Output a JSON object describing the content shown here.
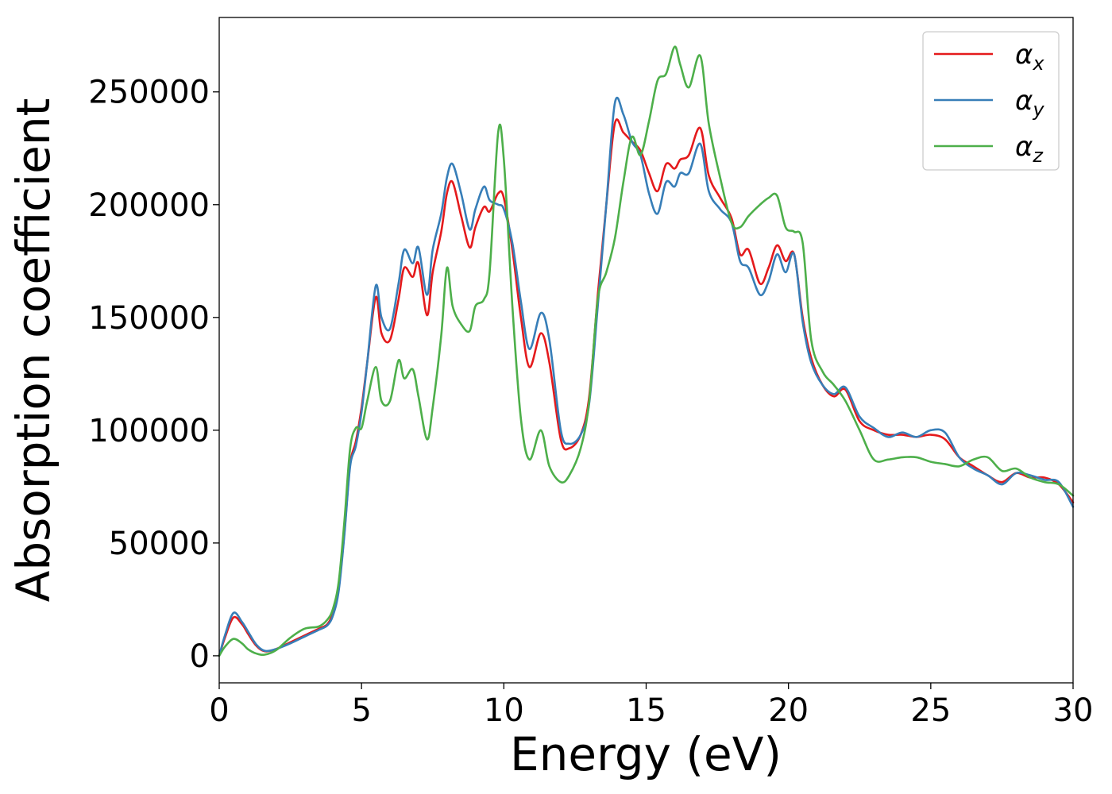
{
  "chart_data": {
    "type": "line",
    "title": "",
    "xlabel": "Energy (eV)",
    "ylabel": "Absorption coefficient",
    "xlim": [
      0,
      30
    ],
    "ylim": [
      -12000,
      283000
    ],
    "xticks": [
      0,
      5,
      10,
      15,
      20,
      25,
      30
    ],
    "yticks": [
      0,
      50000,
      100000,
      150000,
      200000,
      250000
    ],
    "grid": false,
    "legend": "top-right",
    "series": [
      {
        "name": "α",
        "sub": "x",
        "color": "#e41a1c",
        "x": [
          0,
          0.2,
          0.5,
          0.8,
          1.0,
          1.3,
          1.6,
          2.0,
          2.5,
          3.0,
          3.5,
          3.8,
          4.0,
          4.2,
          4.4,
          4.6,
          4.8,
          5.0,
          5.2,
          5.5,
          5.7,
          6.0,
          6.3,
          6.5,
          6.8,
          7.0,
          7.3,
          7.5,
          7.8,
          8.0,
          8.2,
          8.5,
          8.8,
          9.0,
          9.3,
          9.5,
          9.8,
          10.0,
          10.3,
          10.6,
          10.9,
          11.3,
          11.6,
          12.0,
          12.3,
          12.7,
          13.0,
          13.3,
          13.6,
          13.9,
          14.2,
          14.5,
          14.8,
          15.1,
          15.4,
          15.7,
          16.0,
          16.2,
          16.5,
          16.9,
          17.2,
          17.6,
          18.0,
          18.3,
          18.6,
          19.0,
          19.3,
          19.6,
          19.9,
          20.2,
          20.5,
          20.8,
          21.2,
          21.6,
          22.0,
          22.5,
          23.0,
          23.5,
          24.0,
          24.5,
          25.0,
          25.5,
          26.0,
          26.5,
          27.0,
          27.5,
          28.0,
          28.5,
          29.0,
          29.5,
          30.0
        ],
        "y": [
          0,
          8000,
          17000,
          14000,
          10000,
          4500,
          2000,
          3000,
          6000,
          9000,
          12000,
          14000,
          19000,
          30000,
          55000,
          85000,
          95000,
          110000,
          130000,
          159000,
          143000,
          140000,
          158000,
          172000,
          168000,
          174000,
          151000,
          170000,
          188000,
          205000,
          210000,
          195000,
          181000,
          190000,
          199000,
          197000,
          205000,
          203000,
          180000,
          150000,
          128000,
          143000,
          130000,
          96000,
          92000,
          98000,
          115000,
          160000,
          200000,
          236000,
          232000,
          228000,
          224000,
          214000,
          206000,
          218000,
          216000,
          220000,
          222000,
          234000,
          213000,
          203000,
          194000,
          178000,
          180000,
          165000,
          172000,
          182000,
          175000,
          178000,
          150000,
          132000,
          120000,
          115000,
          118000,
          104000,
          100000,
          98000,
          98000,
          97000,
          98000,
          96000,
          88000,
          84000,
          80000,
          77000,
          81000,
          79000,
          79000,
          76000,
          68000
        ]
      },
      {
        "name": "α",
        "sub": "y",
        "color": "#377eb8",
        "x": [
          0,
          0.2,
          0.5,
          0.8,
          1.0,
          1.3,
          1.6,
          2.0,
          2.5,
          3.0,
          3.5,
          3.8,
          4.0,
          4.2,
          4.4,
          4.6,
          4.8,
          5.0,
          5.2,
          5.5,
          5.7,
          6.0,
          6.3,
          6.5,
          6.8,
          7.0,
          7.3,
          7.5,
          7.8,
          8.0,
          8.2,
          8.5,
          8.8,
          9.0,
          9.3,
          9.5,
          9.8,
          10.0,
          10.3,
          10.6,
          10.9,
          11.3,
          11.6,
          12.0,
          12.3,
          12.7,
          13.0,
          13.3,
          13.6,
          13.9,
          14.2,
          14.5,
          14.8,
          15.1,
          15.4,
          15.7,
          16.0,
          16.2,
          16.5,
          16.9,
          17.2,
          17.6,
          18.0,
          18.3,
          18.6,
          19.0,
          19.3,
          19.6,
          19.9,
          20.2,
          20.5,
          20.8,
          21.2,
          21.6,
          22.0,
          22.5,
          23.0,
          23.5,
          24.0,
          24.5,
          25.0,
          25.5,
          26.0,
          26.5,
          27.0,
          27.5,
          28.0,
          28.5,
          29.0,
          29.5,
          30.0
        ],
        "y": [
          0,
          9000,
          19000,
          15000,
          11000,
          5000,
          2200,
          3000,
          5500,
          8500,
          11500,
          13500,
          18000,
          29000,
          54000,
          84000,
          93000,
          108000,
          130000,
          164000,
          150000,
          145000,
          165000,
          180000,
          174000,
          181000,
          160000,
          180000,
          196000,
          212000,
          218000,
          205000,
          189000,
          198000,
          208000,
          202000,
          200000,
          198000,
          183000,
          157000,
          136000,
          152000,
          140000,
          100000,
          94000,
          98000,
          112000,
          155000,
          200000,
          245000,
          240000,
          228000,
          222000,
          205000,
          196000,
          210000,
          208000,
          214000,
          214000,
          227000,
          206000,
          198000,
          192000,
          175000,
          172000,
          160000,
          166000,
          178000,
          170000,
          178000,
          148000,
          130000,
          120000,
          116000,
          119000,
          106000,
          101000,
          97000,
          99000,
          97000,
          100000,
          99000,
          88000,
          83000,
          80000,
          76000,
          81000,
          80000,
          78000,
          77000,
          66000
        ]
      },
      {
        "name": "α",
        "sub": "z",
        "color": "#4daf4a",
        "x": [
          0,
          0.2,
          0.5,
          0.8,
          1.0,
          1.3,
          1.6,
          2.0,
          2.5,
          3.0,
          3.5,
          3.8,
          4.0,
          4.2,
          4.4,
          4.6,
          4.8,
          5.0,
          5.2,
          5.5,
          5.7,
          6.0,
          6.3,
          6.5,
          6.8,
          7.0,
          7.3,
          7.5,
          7.8,
          8.0,
          8.2,
          8.5,
          8.8,
          9.0,
          9.3,
          9.5,
          9.8,
          10.0,
          10.3,
          10.6,
          10.9,
          11.3,
          11.6,
          12.0,
          12.3,
          12.7,
          13.0,
          13.3,
          13.6,
          13.9,
          14.2,
          14.5,
          14.8,
          15.1,
          15.4,
          15.7,
          16.0,
          16.2,
          16.5,
          16.9,
          17.2,
          17.6,
          18.0,
          18.3,
          18.6,
          19.0,
          19.3,
          19.6,
          19.9,
          20.2,
          20.5,
          20.8,
          21.2,
          21.6,
          22.0,
          22.5,
          23.0,
          23.5,
          24.0,
          24.5,
          25.0,
          25.5,
          26.0,
          26.5,
          27.0,
          27.5,
          28.0,
          28.5,
          29.0,
          29.5,
          30.0
        ],
        "y": [
          0,
          4000,
          7500,
          5500,
          3000,
          1000,
          500,
          2500,
          8000,
          12000,
          13000,
          16000,
          21000,
          33000,
          60000,
          92000,
          101000,
          101000,
          113000,
          128000,
          113000,
          113000,
          131000,
          123000,
          127000,
          115000,
          96000,
          110000,
          142000,
          172000,
          155000,
          147000,
          144000,
          155000,
          158000,
          170000,
          232000,
          220000,
          155000,
          105000,
          87000,
          100000,
          84000,
          77000,
          80000,
          92000,
          113000,
          158000,
          170000,
          185000,
          210000,
          230000,
          222000,
          237000,
          255000,
          258000,
          270000,
          262000,
          252000,
          266000,
          236000,
          212000,
          192000,
          190000,
          195000,
          200000,
          203000,
          204000,
          190000,
          188000,
          183000,
          140000,
          126000,
          120000,
          113000,
          100000,
          87000,
          87000,
          88000,
          88000,
          86000,
          85000,
          84000,
          87000,
          88000,
          82000,
          83000,
          79000,
          77000,
          76000,
          71000
        ]
      }
    ]
  }
}
